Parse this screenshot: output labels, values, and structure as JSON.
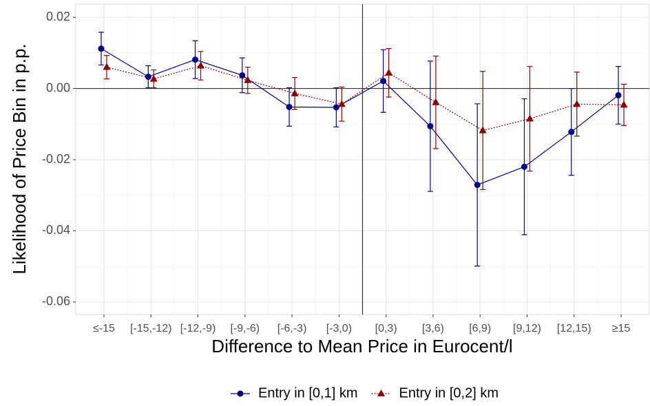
{
  "chart_data": {
    "type": "errorbar-line",
    "xlabel": "Difference to Mean Price in Eurocent/l",
    "ylabel": "Likelihood of Price Bin in p.p.",
    "categories": [
      "≤-15",
      "[-15,-12)",
      "[-12,-9)",
      "[-9,-6)",
      "[-6,-3)",
      "[-3,0)",
      "[0,3)",
      "[3,6)",
      "[6,9)",
      "[9,12)",
      "[12,15)",
      "≥15"
    ],
    "series": [
      {
        "name": "Entry in [0,1] km",
        "color": "#00008b",
        "marker": "circle",
        "linestyle": "solid",
        "values": [
          0.0112,
          0.0033,
          0.0081,
          0.0037,
          -0.0052,
          -0.0053,
          0.0021,
          -0.0106,
          -0.0271,
          -0.022,
          -0.0122,
          -0.0019
        ],
        "errors": [
          0.0046,
          0.0031,
          0.0053,
          0.0049,
          0.0054,
          0.0055,
          0.0088,
          0.0183,
          0.0228,
          0.0191,
          0.0122,
          0.0081
        ]
      },
      {
        "name": "Entry in [0,2] km",
        "color": "#8b0000",
        "marker": "triangle",
        "linestyle": "dotted",
        "values": [
          0.006,
          0.0027,
          0.0064,
          0.0023,
          -0.0014,
          -0.0044,
          0.0044,
          -0.0039,
          -0.0118,
          -0.0085,
          -0.0044,
          -0.0046
        ],
        "errors": [
          0.0033,
          0.0025,
          0.004,
          0.0037,
          0.0045,
          0.0048,
          0.0068,
          0.013,
          0.0166,
          0.0147,
          0.009,
          0.0058
        ]
      }
    ],
    "ylim": [
      -0.0635,
      0.0237
    ],
    "yticks": [
      0.02,
      {
        "value": 0,
        "label": "0.00"
      },
      -0.02,
      -0.04,
      -0.06
    ],
    "hline": 0,
    "grid": true,
    "legend": "bottom"
  }
}
